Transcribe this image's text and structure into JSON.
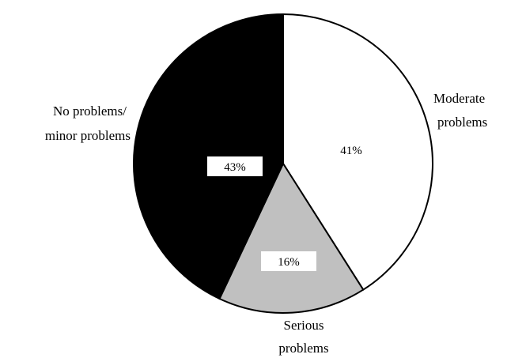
{
  "chart_data": {
    "type": "pie",
    "start_angle_deg": 0,
    "direction": "clockwise",
    "slices": [
      {
        "label_lines": [
          "Moderate",
          "problems"
        ],
        "value": 41,
        "display": "41%",
        "color": "#ffffff",
        "label_bg": false
      },
      {
        "label_lines": [
          "Serious",
          "problems"
        ],
        "value": 16,
        "display": "16%",
        "color": "#c0c0c0",
        "label_bg": true
      },
      {
        "label_lines": [
          "No problems/",
          "minor problems"
        ],
        "value": 43,
        "display": "43%",
        "color": "#000000",
        "label_bg": true
      }
    ],
    "edge_color": "#000000"
  }
}
